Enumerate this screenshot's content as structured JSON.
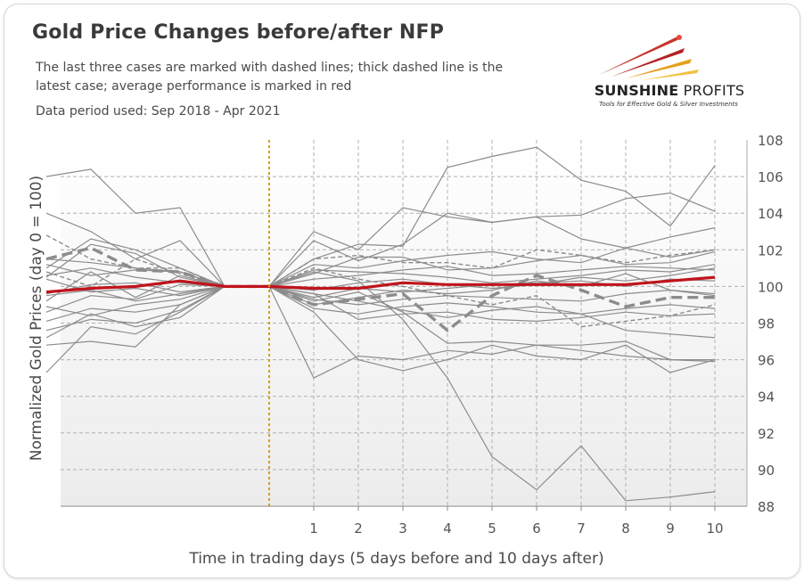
{
  "header": {
    "title": "Gold Price Changes before/after NFP",
    "subtitle": "The last three cases are marked with dashed lines; thick dashed line is the latest case; average performance is marked in red",
    "period": "Data period used: Sep 2018 - Apr 2021"
  },
  "logo": {
    "name_bold": "SUNSHINE",
    "name_rest": " PROFITS",
    "tagline": "Tools for Effective Gold & Silver Investments"
  },
  "colors": {
    "plot_bg_top": "#ffffff",
    "plot_bg_bottom": "#ececec",
    "case_line": "#8c8c8c",
    "average_line": "#c0141c",
    "event_marker": "#d4a017",
    "grid": "#b0b0b0",
    "tick_text": "#555555"
  },
  "chart_data": {
    "type": "line",
    "title": "Gold Price Changes before/after NFP",
    "xlabel": "Time in trading days  (5 days before and 10 days after)",
    "ylabel": "Normalized Gold Prices (day 0 = 100)",
    "x": [
      -5,
      -4,
      -3,
      -2,
      -1,
      0,
      1,
      2,
      3,
      4,
      5,
      6,
      7,
      8,
      9,
      10
    ],
    "x_tick_labels": [
      "1",
      "2",
      "3",
      "4",
      "5",
      "6",
      "7",
      "8",
      "9",
      "10"
    ],
    "ylim": [
      88,
      108
    ],
    "y_ticks": [
      88,
      90,
      92,
      94,
      96,
      98,
      100,
      102,
      104,
      106,
      108
    ],
    "y_axis_side": "right",
    "grid": "horizontal dashed",
    "event_marker_x": 0,
    "cases": [
      [
        106.0,
        106.4,
        104.0,
        104.3,
        100.0,
        100.0,
        95.0,
        96.2,
        96.0,
        96.5,
        96.3,
        96.8,
        96.5,
        96.2,
        96.0,
        96.0
      ],
      [
        104.0,
        103.0,
        101.5,
        102.5,
        100.0,
        100.0,
        103.0,
        102.0,
        104.3,
        103.8,
        103.5,
        103.8,
        103.9,
        104.8,
        105.1,
        104.1
      ],
      [
        101.0,
        102.6,
        102.0,
        101.0,
        100.0,
        100.0,
        101.5,
        102.3,
        102.2,
        106.5,
        107.1,
        107.6,
        105.8,
        105.2,
        103.3,
        106.6
      ],
      [
        100.5,
        102.3,
        101.8,
        100.5,
        100.0,
        100.0,
        102.5,
        101.4,
        102.3,
        104.0,
        103.5,
        103.8,
        102.6,
        102.1,
        102.7,
        103.2
      ],
      [
        99.2,
        100.8,
        99.4,
        100.6,
        100.0,
        100.0,
        101.2,
        101.0,
        101.4,
        101.7,
        101.9,
        101.5,
        101.3,
        102.1,
        101.6,
        102.0
      ],
      [
        98.6,
        99.5,
        99.3,
        100.1,
        100.0,
        100.0,
        100.7,
        101.6,
        101.6,
        100.9,
        101.0,
        101.4,
        101.7,
        101.2,
        101.3,
        101.9
      ],
      [
        99.6,
        100.1,
        100.2,
        99.7,
        100.0,
        100.0,
        100.4,
        100.6,
        100.9,
        101.1,
        100.6,
        100.7,
        100.9,
        101.1,
        101.0,
        100.9
      ],
      [
        101.2,
        100.6,
        100.9,
        100.8,
        100.0,
        100.0,
        100.9,
        100.8,
        100.7,
        100.5,
        100.2,
        100.4,
        100.6,
        100.9,
        100.8,
        101.2
      ],
      [
        100.4,
        99.7,
        99.9,
        99.5,
        100.0,
        100.0,
        99.8,
        100.2,
        100.4,
        100.1,
        99.9,
        100.1,
        100.5,
        100.3,
        100.6,
        101.0
      ],
      [
        99.5,
        99.8,
        99.2,
        99.6,
        100.0,
        100.0,
        99.4,
        99.9,
        99.7,
        99.9,
        100.1,
        100.2,
        100.3,
        100.0,
        100.4,
        100.3
      ],
      [
        98.9,
        98.4,
        99.0,
        99.3,
        100.0,
        100.0,
        99.0,
        99.4,
        99.8,
        99.6,
        99.8,
        100.3,
        100.0,
        100.7,
        99.8,
        99.5
      ],
      [
        98.1,
        98.8,
        98.6,
        99.0,
        100.0,
        100.0,
        99.3,
        99.0,
        99.3,
        99.5,
        99.4,
        99.3,
        99.2,
        99.6,
        99.8,
        99.6
      ],
      [
        97.6,
        98.2,
        98.0,
        98.7,
        100.0,
        100.0,
        98.8,
        98.5,
        98.9,
        99.1,
        98.9,
        98.6,
        98.5,
        98.8,
        99.0,
        98.8
      ],
      [
        97.2,
        98.5,
        97.8,
        98.3,
        100.0,
        100.0,
        99.6,
        98.2,
        98.5,
        98.6,
        98.2,
        98.1,
        98.3,
        98.6,
        98.4,
        98.5
      ],
      [
        96.8,
        97.0,
        96.7,
        99.0,
        100.0,
        100.0,
        99.6,
        99.2,
        98.7,
        98.3,
        98.7,
        98.9,
        98.5,
        97.6,
        97.4,
        97.2
      ],
      [
        95.3,
        97.8,
        97.4,
        98.6,
        100.0,
        100.0,
        99.2,
        99.7,
        98.6,
        96.9,
        97.0,
        96.8,
        96.8,
        97.0,
        96.0,
        95.9
      ],
      [
        101.5,
        101.3,
        101.0,
        100.8,
        100.0,
        100.0,
        98.6,
        96.0,
        95.4,
        96.0,
        96.8,
        96.2,
        96.0,
        96.8,
        95.3,
        96.0
      ],
      [
        100.6,
        101.0,
        100.5,
        100.2,
        100.0,
        100.0,
        100.8,
        100.3,
        98.2,
        95.0,
        90.7,
        88.9,
        91.3,
        88.3,
        88.5,
        88.8
      ]
    ],
    "recent_cases": [
      [
        102.8,
        101.5,
        101.0,
        101.0,
        100.0,
        100.0,
        101.0,
        100.4,
        100.0,
        99.5,
        99.0,
        99.5,
        97.8,
        98.1,
        98.4,
        99.0
      ],
      [
        100.8,
        100.0,
        101.5,
        100.7,
        100.0,
        100.0,
        101.5,
        101.7,
        101.3,
        101.3,
        101.0,
        102.0,
        101.7,
        101.3,
        101.7,
        102.0
      ]
    ],
    "latest_case": [
      101.5,
      102.1,
      100.9,
      100.8,
      100.0,
      100.0,
      99.0,
      99.3,
      99.6,
      97.6,
      99.5,
      100.6,
      99.8,
      98.9,
      99.4,
      99.4
    ],
    "average": [
      99.7,
      99.9,
      100.0,
      100.3,
      100.0,
      100.0,
      99.9,
      99.9,
      100.2,
      100.1,
      100.1,
      100.1,
      100.1,
      100.1,
      100.3,
      100.5
    ]
  }
}
